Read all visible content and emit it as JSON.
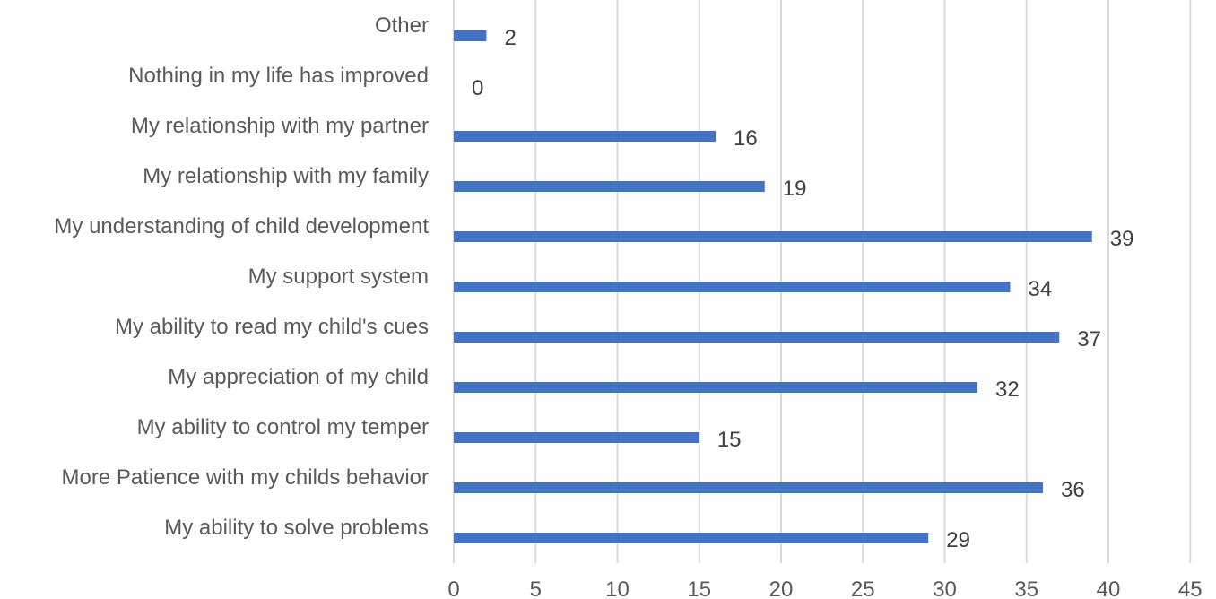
{
  "chart_data": {
    "type": "bar",
    "orientation": "horizontal",
    "categories": [
      "Other",
      "Nothing in my life has improved",
      "My relationship with my partner",
      "My relationship with my family",
      "My understanding of child development",
      "My support system",
      "My ability to read my child's cues",
      "My appreciation of my child",
      "My ability to control my temper",
      "More Patience with my childs behavior",
      "My ability to solve problems"
    ],
    "values": [
      2,
      0,
      16,
      19,
      39,
      34,
      37,
      32,
      15,
      36,
      29
    ],
    "xticks": [
      0,
      5,
      10,
      15,
      20,
      25,
      30,
      35,
      40,
      45
    ],
    "xlim": [
      0,
      45
    ],
    "grid": true,
    "legend": "none",
    "colors": {
      "bar": "#4472c4"
    }
  }
}
